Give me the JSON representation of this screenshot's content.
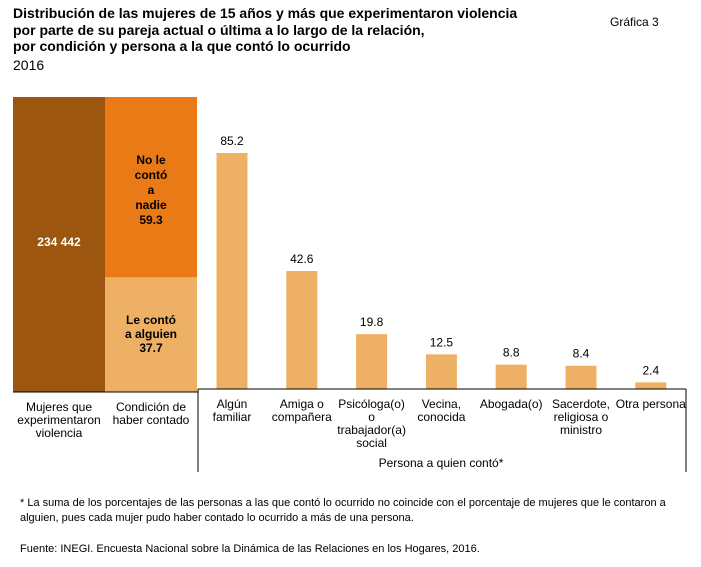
{
  "header": {
    "title_lines": [
      "Distribución de las mujeres de 15 años y más que experimentaron violencia",
      "por parte de su pareja actual o última a lo largo de la relación,",
      "por condición y persona a la que contó lo ocurrido"
    ],
    "year": "2016",
    "figure_label": "Gráfica 3"
  },
  "chart_data": [
    {
      "type": "bar",
      "title": "",
      "categories": [
        "Mujeres que experimentaron violencia"
      ],
      "values": [
        234442
      ],
      "data_labels": [
        "234 442"
      ],
      "color": "#9C5610"
    },
    {
      "type": "bar",
      "stacked": true,
      "categories": [
        "Condición de haber contado"
      ],
      "series": [
        {
          "name": "Le contó a alguien",
          "label_lines": [
            "Le contó",
            "a alguien",
            "37.7"
          ],
          "values": [
            37.7
          ],
          "color": "#EDB064"
        },
        {
          "name": "No le contó a nadie",
          "label_lines": [
            "No le",
            "contó",
            "a",
            "nadie",
            "59.3"
          ],
          "values": [
            59.3
          ],
          "color": "#E97A16"
        }
      ]
    },
    {
      "type": "bar",
      "categories": [
        "Algún familiar",
        "Amiga o compañera",
        "Psicóloga(o) o trabajador(a) social",
        "Vecina, conocida",
        "Abogada(o)",
        "Sacerdote, religiosa o ministro",
        "Otra persona"
      ],
      "category_label_lines": [
        [
          "Algún",
          "familiar"
        ],
        [
          "Amiga o",
          "compañera"
        ],
        [
          "Psicóloga(o)",
          "o",
          "trabajador(a)",
          "social"
        ],
        [
          "Vecina,",
          "conocida"
        ],
        [
          "Abogada(o)"
        ],
        [
          "Sacerdote,",
          "religiosa o",
          "ministro"
        ],
        [
          "Otra persona"
        ]
      ],
      "values": [
        85.2,
        42.6,
        19.8,
        12.5,
        8.8,
        8.4,
        2.4
      ],
      "data_labels": [
        "85.2",
        "42.6",
        "19.8",
        "12.5",
        "8.8",
        "8.4",
        "2.4"
      ],
      "xlabel": "Persona a quien contó*",
      "color": "#EDB064",
      "grid": false
    }
  ],
  "left_labels": [
    [
      "Mujeres que",
      "experimentaron",
      "violencia"
    ],
    [
      "Condición de",
      "haber contado"
    ]
  ],
  "footnote": "* La suma de los porcentajes de las personas a las que contó lo ocurrido no coincide con  el porcentaje de mujeres que le contaron a alguien, pues cada mujer pudo haber contado lo ocurrido a más de una persona.",
  "source": "Fuente: INEGI. Encuesta Nacional sobre la Dinámica de las Relaciones en los Hogares, 2016."
}
